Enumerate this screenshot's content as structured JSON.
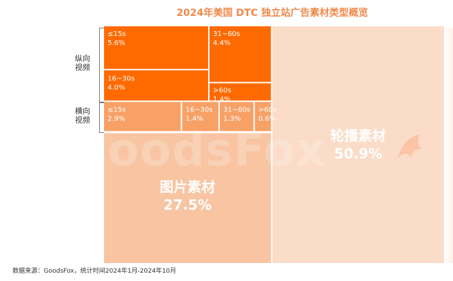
{
  "chart_data": {
    "type": "treemap",
    "title": "2024年美国 DTC 独立站广告素材类型概览",
    "groups": [
      {
        "name": "纵向\n视频",
        "label": "纵向视频",
        "label_lines": [
          "纵向",
          "视频"
        ],
        "color": "#ff6a00",
        "text_color": "#ffffff",
        "items": [
          {
            "name": "≤15s",
            "value": 5.6,
            "display": "5.6%"
          },
          {
            "name": "31~60s",
            "value": 4.4,
            "display": "4.4%"
          },
          {
            "name": "16~30s",
            "value": 4.0,
            "display": "4.0%"
          },
          {
            "name": ">60s",
            "value": 1.4,
            "display": "1.4%"
          }
        ]
      },
      {
        "name": "横向\n视频",
        "label": "横向视频",
        "label_lines": [
          "横向",
          "视频"
        ],
        "color": "#f7a167",
        "text_color": "#ffffff",
        "items": [
          {
            "name": "≤15s",
            "value": 2.9,
            "display": "2.9%"
          },
          {
            "name": "16~30s",
            "value": 1.4,
            "display": "1.4%"
          },
          {
            "name": "31~60s",
            "value": 1.3,
            "display": "1.3%"
          },
          {
            "name": ">60s",
            "value": 0.6,
            "display": "0.6%"
          }
        ]
      },
      {
        "name": "图片素材",
        "value": 27.5,
        "display": "27.5%",
        "color": "#f8c4a2",
        "text_color": "#ffffff"
      },
      {
        "name": "轮播素材",
        "value": 50.9,
        "display": "50.9%",
        "color": "#fadcc8",
        "text_color": "#ffffff"
      }
    ],
    "colors": {
      "vertical": "#ff6a00",
      "horizontal": "#f7a167",
      "image": "#f8c4a2",
      "carousel": "#fadcc8",
      "title": "#f08a4b"
    }
  },
  "watermark": "GoodsFox",
  "footer": "数据来源：GoodsFox，统计时间2024年1月-2024年10月"
}
